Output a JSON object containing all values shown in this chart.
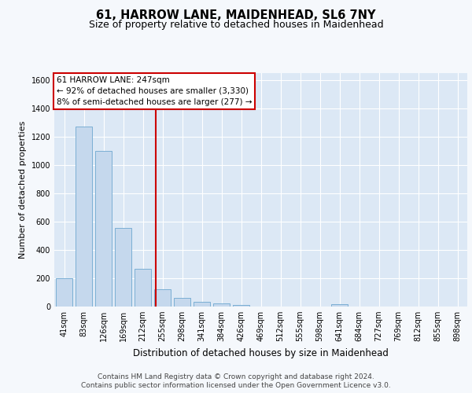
{
  "title": "61, HARROW LANE, MAIDENHEAD, SL6 7NY",
  "subtitle": "Size of property relative to detached houses in Maidenhead",
  "xlabel": "Distribution of detached houses by size in Maidenhead",
  "ylabel": "Number of detached properties",
  "bar_color": "#c5d8ed",
  "bar_edge_color": "#7bafd4",
  "background_color": "#dce8f5",
  "grid_color": "#ffffff",
  "fig_background": "#f5f8fc",
  "categories": [
    "41sqm",
    "83sqm",
    "126sqm",
    "169sqm",
    "212sqm",
    "255sqm",
    "298sqm",
    "341sqm",
    "384sqm",
    "426sqm",
    "469sqm",
    "512sqm",
    "555sqm",
    "598sqm",
    "641sqm",
    "684sqm",
    "727sqm",
    "769sqm",
    "812sqm",
    "855sqm",
    "898sqm"
  ],
  "values": [
    198,
    1270,
    1100,
    555,
    265,
    120,
    62,
    32,
    22,
    12,
    0,
    0,
    0,
    0,
    18,
    0,
    0,
    0,
    0,
    0,
    0
  ],
  "ylim": [
    0,
    1650
  ],
  "yticks": [
    0,
    200,
    400,
    600,
    800,
    1000,
    1200,
    1400,
    1600
  ],
  "property_line_x": 4.67,
  "annotation_line1": "61 HARROW LANE: 247sqm",
  "annotation_line2": "← 92% of detached houses are smaller (3,330)",
  "annotation_line3": "8% of semi-detached houses are larger (277) →",
  "annotation_box_color": "#ffffff",
  "annotation_border_color": "#cc0000",
  "footer_line1": "Contains HM Land Registry data © Crown copyright and database right 2024.",
  "footer_line2": "Contains public sector information licensed under the Open Government Licence v3.0.",
  "title_fontsize": 10.5,
  "subtitle_fontsize": 9,
  "ylabel_fontsize": 8,
  "xlabel_fontsize": 8.5,
  "tick_fontsize": 7,
  "annotation_fontsize": 7.5,
  "footer_fontsize": 6.5
}
